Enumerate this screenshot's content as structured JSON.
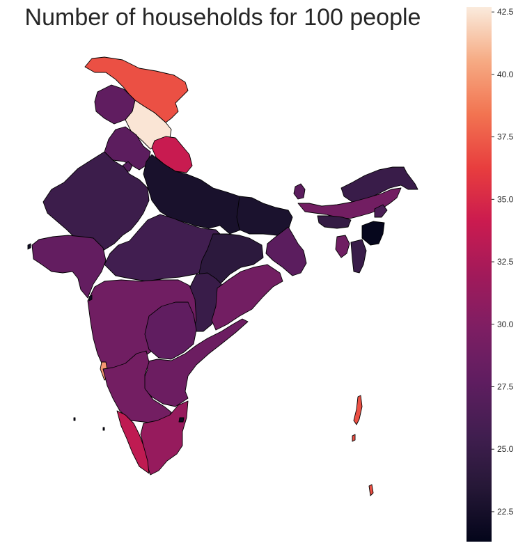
{
  "chart_data": {
    "type": "heatmap",
    "subtype": "choropleth",
    "title": "Number of households for 100 people",
    "colormap": "rocket",
    "vlim": [
      21.3,
      42.7
    ],
    "colorbar": {
      "ticks": [
        22.5,
        25.0,
        27.5,
        30.0,
        32.5,
        35.0,
        37.5,
        40.0,
        42.5
      ],
      "tick_labels": [
        "22.5",
        "25.0",
        "27.5",
        "30.0",
        "32.5",
        "35.0",
        "37.5",
        "40.0",
        "42.5"
      ],
      "placement": "right"
    },
    "grid": false,
    "values": [
      {
        "id": "jammu-kashmir-ladakh",
        "value": 37.0
      },
      {
        "id": "himachal-pradesh",
        "value": 42.5
      },
      {
        "id": "punjab",
        "value": 27.8
      },
      {
        "id": "uttarakhand",
        "value": 34.0
      },
      {
        "id": "haryana",
        "value": 27.5
      },
      {
        "id": "delhi",
        "value": 27.0
      },
      {
        "id": "rajasthan",
        "value": 25.2
      },
      {
        "id": "uttar-pradesh",
        "value": 22.7
      },
      {
        "id": "bihar",
        "value": 22.8
      },
      {
        "id": "gujarat",
        "value": 28.0
      },
      {
        "id": "madhya-pradesh",
        "value": 25.6
      },
      {
        "id": "jharkhand",
        "value": 24.0
      },
      {
        "id": "west-bengal",
        "value": 27.4
      },
      {
        "id": "chhattisgarh",
        "value": 25.0
      },
      {
        "id": "odisha",
        "value": 29.0
      },
      {
        "id": "maharashtra",
        "value": 28.9
      },
      {
        "id": "telangana",
        "value": 27.8
      },
      {
        "id": "andhra-pradesh",
        "value": 28.6
      },
      {
        "id": "goa",
        "value": 39.8
      },
      {
        "id": "karnataka",
        "value": 29.1
      },
      {
        "id": "tamil-nadu",
        "value": 31.3
      },
      {
        "id": "kerala",
        "value": 33.5
      },
      {
        "id": "puducherry",
        "value": 22.0
      },
      {
        "id": "sikkim",
        "value": 27.5
      },
      {
        "id": "arunachal-pradesh",
        "value": 25.0
      },
      {
        "id": "assam",
        "value": 29.0
      },
      {
        "id": "meghalaya",
        "value": 24.6
      },
      {
        "id": "nagaland",
        "value": 26.2
      },
      {
        "id": "manipur",
        "value": 21.5
      },
      {
        "id": "mizoram",
        "value": 25.0
      },
      {
        "id": "tripura",
        "value": 28.8
      },
      {
        "id": "andaman-nicobar",
        "value": 37.0
      },
      {
        "id": "lakshadweep",
        "value": 22.0
      },
      {
        "id": "daman-diu",
        "value": 22.0
      }
    ]
  }
}
